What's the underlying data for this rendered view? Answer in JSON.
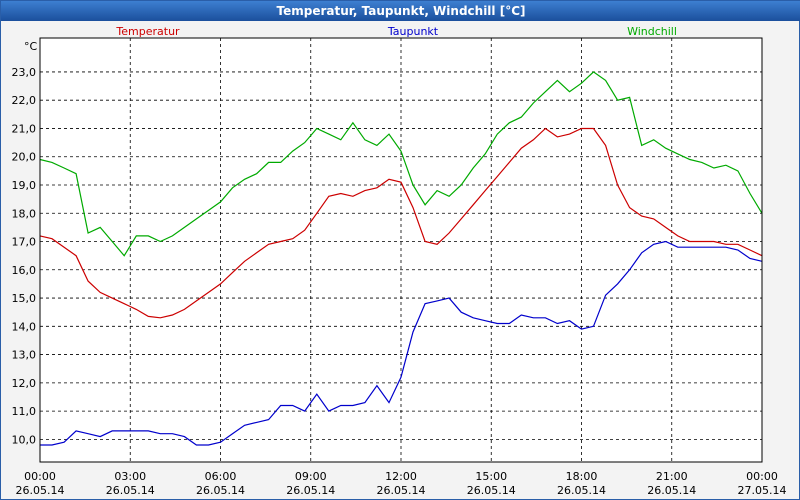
{
  "window": {
    "title": "Temperatur, Taupunkt, Windchill [°C]"
  },
  "chart_data": {
    "type": "line",
    "title": "Temperatur, Taupunkt, Windchill [°C]",
    "ylabel": "°C",
    "ylim": [
      9.2,
      24.2
    ],
    "xlim_hours": [
      0,
      24
    ],
    "grid": true,
    "legend": "top, inline across plot",
    "yticks": [
      "10,0",
      "11,0",
      "12,0",
      "13,0",
      "14,0",
      "15,0",
      "16,0",
      "17,0",
      "18,0",
      "19,0",
      "20,0",
      "21,0",
      "22,0",
      "23,0"
    ],
    "ytick_values": [
      10,
      11,
      12,
      13,
      14,
      15,
      16,
      17,
      18,
      19,
      20,
      21,
      22,
      23
    ],
    "xticks": [
      {
        "time": "00:00",
        "date": "26.05.14"
      },
      {
        "time": "03:00",
        "date": "26.05.14"
      },
      {
        "time": "06:00",
        "date": "26.05.14"
      },
      {
        "time": "09:00",
        "date": "26.05.14"
      },
      {
        "time": "12:00",
        "date": "26.05.14"
      },
      {
        "time": "15:00",
        "date": "26.05.14"
      },
      {
        "time": "18:00",
        "date": "26.05.14"
      },
      {
        "time": "21:00",
        "date": "26.05.14"
      },
      {
        "time": "00:00",
        "date": "27.05.14"
      }
    ],
    "xtick_hours": [
      0,
      3,
      6,
      9,
      12,
      15,
      18,
      21,
      24
    ],
    "series": [
      {
        "name": "Temperatur",
        "color": "#cc0000",
        "x": [
          0,
          0.4,
          0.8,
          1.2,
          1.6,
          2.0,
          2.4,
          2.8,
          3.2,
          3.6,
          4.0,
          4.4,
          4.8,
          5.2,
          5.6,
          6.0,
          6.4,
          6.8,
          7.2,
          7.6,
          8.0,
          8.4,
          8.8,
          9.2,
          9.6,
          10.0,
          10.4,
          10.8,
          11.2,
          11.6,
          12.0,
          12.4,
          12.8,
          13.2,
          13.6,
          14.0,
          14.4,
          14.8,
          15.2,
          15.6,
          16.0,
          16.4,
          16.8,
          17.2,
          17.6,
          18.0,
          18.4,
          18.8,
          19.2,
          19.6,
          20.0,
          20.4,
          20.8,
          21.2,
          21.6,
          22.0,
          22.4,
          22.8,
          23.2,
          23.6,
          24.0
        ],
        "values": [
          17.2,
          17.1,
          16.8,
          16.5,
          15.6,
          15.2,
          15.0,
          14.8,
          14.6,
          14.35,
          14.3,
          14.4,
          14.6,
          14.9,
          15.2,
          15.5,
          15.9,
          16.3,
          16.6,
          16.9,
          17.0,
          17.1,
          17.4,
          18.0,
          18.6,
          18.7,
          18.6,
          18.8,
          18.9,
          19.2,
          19.1,
          18.2,
          17.0,
          16.9,
          17.3,
          17.8,
          18.3,
          18.8,
          19.3,
          19.8,
          20.3,
          20.6,
          21.0,
          20.7,
          20.8,
          21.0,
          21.0,
          20.4,
          19.0,
          18.2,
          17.9,
          17.8,
          17.5,
          17.2,
          17.0,
          17.0,
          17.0,
          16.9,
          16.9,
          16.7,
          16.5
        ]
      },
      {
        "name": "Taupunkt",
        "color": "#0000cc",
        "x": [
          0,
          0.4,
          0.8,
          1.2,
          1.6,
          2.0,
          2.4,
          2.8,
          3.2,
          3.6,
          4.0,
          4.4,
          4.8,
          5.2,
          5.6,
          6.0,
          6.4,
          6.8,
          7.2,
          7.6,
          8.0,
          8.4,
          8.8,
          9.2,
          9.6,
          10.0,
          10.4,
          10.8,
          11.2,
          11.6,
          12.0,
          12.4,
          12.8,
          13.2,
          13.6,
          14.0,
          14.4,
          14.8,
          15.2,
          15.6,
          16.0,
          16.4,
          16.8,
          17.2,
          17.6,
          18.0,
          18.4,
          18.8,
          19.2,
          19.6,
          20.0,
          20.4,
          20.8,
          21.2,
          21.6,
          22.0,
          22.4,
          22.8,
          23.2,
          23.6,
          24.0
        ],
        "values": [
          9.8,
          9.8,
          9.9,
          10.3,
          10.2,
          10.1,
          10.3,
          10.3,
          10.3,
          10.3,
          10.2,
          10.2,
          10.1,
          9.8,
          9.8,
          9.9,
          10.2,
          10.5,
          10.6,
          10.7,
          11.2,
          11.2,
          11.0,
          11.6,
          11.0,
          11.2,
          11.2,
          11.3,
          11.9,
          11.3,
          12.2,
          13.8,
          14.8,
          14.9,
          15.0,
          14.5,
          14.3,
          14.2,
          14.1,
          14.1,
          14.4,
          14.3,
          14.3,
          14.1,
          14.2,
          13.9,
          14.0,
          15.1,
          15.5,
          16.0,
          16.6,
          16.9,
          17.0,
          16.8,
          16.8,
          16.8,
          16.8,
          16.8,
          16.7,
          16.4,
          16.3
        ]
      },
      {
        "name": "Windchill",
        "color": "#00aa00",
        "x": [
          0,
          0.4,
          0.8,
          1.2,
          1.6,
          2.0,
          2.4,
          2.8,
          3.2,
          3.6,
          4.0,
          4.4,
          4.8,
          5.2,
          5.6,
          6.0,
          6.4,
          6.8,
          7.2,
          7.6,
          8.0,
          8.4,
          8.8,
          9.2,
          9.6,
          10.0,
          10.4,
          10.8,
          11.2,
          11.6,
          12.0,
          12.4,
          12.8,
          13.2,
          13.6,
          14.0,
          14.4,
          14.8,
          15.2,
          15.6,
          16.0,
          16.4,
          16.8,
          17.2,
          17.6,
          18.0,
          18.4,
          18.8,
          19.2,
          19.6,
          20.0,
          20.4,
          20.8,
          21.2,
          21.6,
          22.0,
          22.4,
          22.8,
          23.2,
          23.6,
          24.0
        ],
        "values": [
          19.9,
          19.8,
          19.6,
          19.4,
          17.3,
          17.5,
          17.0,
          16.5,
          17.2,
          17.2,
          17.0,
          17.2,
          17.5,
          17.8,
          18.1,
          18.4,
          18.9,
          19.2,
          19.4,
          19.8,
          19.8,
          20.2,
          20.5,
          21.0,
          20.8,
          20.6,
          21.2,
          20.6,
          20.4,
          20.8,
          20.2,
          19.0,
          18.3,
          18.8,
          18.6,
          19.0,
          19.6,
          20.1,
          20.8,
          21.2,
          21.4,
          21.9,
          22.3,
          22.7,
          22.3,
          22.6,
          23.0,
          22.7,
          22.0,
          22.1,
          20.4,
          20.6,
          20.3,
          20.1,
          19.9,
          19.8,
          19.6,
          19.7,
          19.5,
          18.7,
          18.0
        ]
      }
    ]
  }
}
